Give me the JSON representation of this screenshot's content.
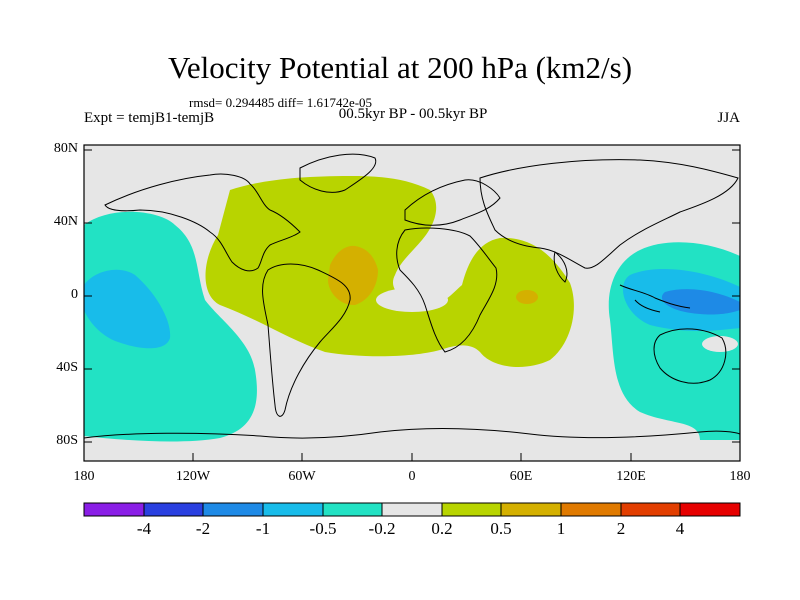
{
  "title": "Velocity Potential at 200 hPa (km2/s)",
  "stats": "rmsd= 0.294485 diff= 1.61742e-05",
  "left_label": "Expt = temjB1-temjB",
  "center_label": "00.5kyr BP - 00.5kyr BP",
  "right_label": "JJA",
  "y_axis_labels": [
    "80N",
    "40N",
    "0",
    "40S",
    "80S"
  ],
  "x_axis_labels": [
    "180",
    "120W",
    "60W",
    "0",
    "60E",
    "120E",
    "180"
  ],
  "colorbar": {
    "labels": [
      "-4",
      "-2",
      "-1",
      "-0.5",
      "-0.2",
      "0.2",
      "0.5",
      "1",
      "2",
      "4"
    ],
    "colors": [
      "#8a1ee6",
      "#2a40e0",
      "#1e8ae6",
      "#18bcea",
      "#22e2c4",
      "#e6e6e6",
      "#b8d400",
      "#d4b000",
      "#e07a00",
      "#e23e00",
      "#e60000"
    ]
  },
  "palette": {
    "ocean_background": "#e6e6e6",
    "neg_02_05": "#22e2c4",
    "neg_05_1": "#18bcea",
    "neg_1_2": "#1e8ae6",
    "pos_02_05": "#b8d400",
    "pos_05_1": "#d4b000",
    "pos_1_2": "#e07a00"
  }
}
